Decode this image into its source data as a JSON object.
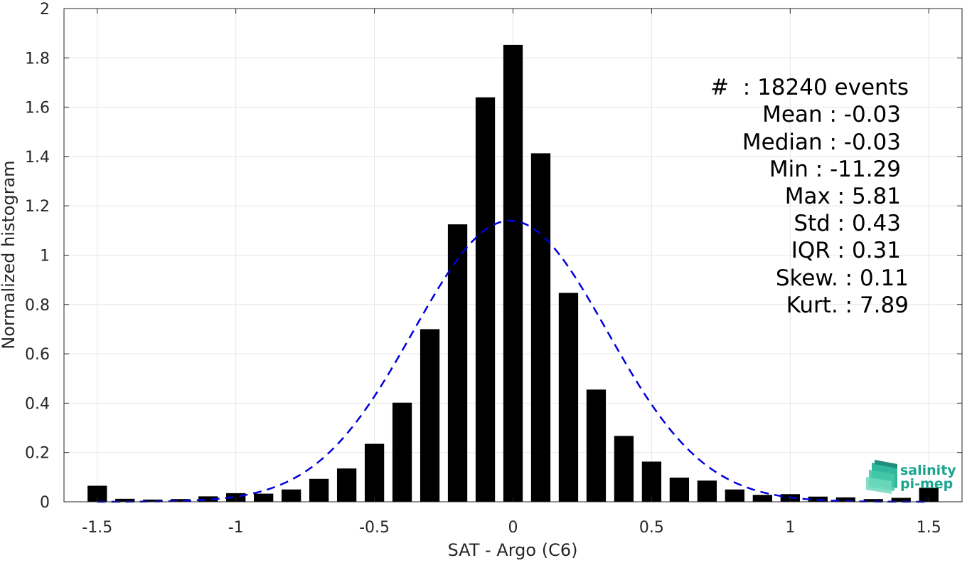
{
  "chart_data": {
    "type": "bar",
    "title": "",
    "xlabel": "SAT - Argo (C6)",
    "ylabel": "Normalized histogram",
    "xlim": [
      -1.62,
      1.62
    ],
    "ylim": [
      0,
      2
    ],
    "grid": true,
    "x_ticks": [
      -1.5,
      -1,
      -0.5,
      0,
      0.5,
      1,
      1.5
    ],
    "x_tick_labels": [
      "-1.5",
      "-1",
      "-0.5",
      "0",
      "0.5",
      "1",
      "1.5"
    ],
    "y_ticks": [
      0,
      0.2,
      0.4,
      0.6,
      0.8,
      1,
      1.2,
      1.4,
      1.6,
      1.8,
      2
    ],
    "y_tick_labels": [
      "0",
      "0.2",
      "0.4",
      "0.6",
      "0.8",
      "1",
      "1.2",
      "1.4",
      "1.6",
      "1.8",
      "2"
    ],
    "bar_width": 0.07,
    "bar_color": "#000000",
    "bars": {
      "x": [
        -1.5,
        -1.4,
        -1.3,
        -1.2,
        -1.1,
        -1.0,
        -0.9,
        -0.8,
        -0.7,
        -0.6,
        -0.5,
        -0.4,
        -0.3,
        -0.2,
        -0.1,
        0.0,
        0.1,
        0.2,
        0.3,
        0.4,
        0.5,
        0.6,
        0.7,
        0.8,
        0.9,
        1.0,
        1.1,
        1.2,
        1.3,
        1.4,
        1.5
      ],
      "values": [
        0.065,
        0.012,
        0.009,
        0.011,
        0.022,
        0.035,
        0.033,
        0.05,
        0.093,
        0.135,
        0.235,
        0.402,
        0.7,
        1.125,
        1.64,
        1.853,
        1.413,
        0.847,
        0.455,
        0.267,
        0.163,
        0.098,
        0.086,
        0.05,
        0.028,
        0.031,
        0.021,
        0.018,
        0.011,
        0.016,
        0.057
      ]
    },
    "fit": {
      "name": "Gaussian fit",
      "mean": -0.01,
      "std": 0.35,
      "color": "#0000dd",
      "style": "dashed"
    },
    "stats": [
      "#  : 18240 events",
      "Mean : -0.03",
      "Median : -0.03",
      "Min : -11.29",
      "Max : 5.81",
      "Std : 0.43",
      "IQR : 0.31",
      "Skew. : 0.11",
      "Kurt. : 7.89"
    ],
    "logo": {
      "line1": "salinity",
      "line2": "pi-mep",
      "color": "#1aa58f"
    }
  }
}
